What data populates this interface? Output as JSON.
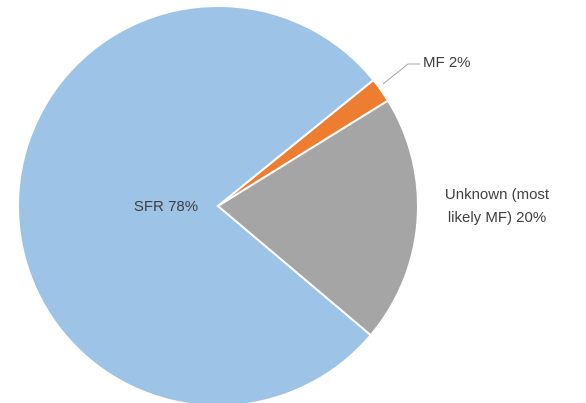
{
  "chart_data": {
    "type": "pie",
    "categories": [
      "SFR",
      "MF",
      "Unknown (most likely MF)"
    ],
    "values": [
      78,
      2,
      20
    ],
    "value_labels": [
      "78%",
      "2%",
      "20%"
    ],
    "colors": [
      "#9dc3e6",
      "#ed7d31",
      "#a5a5a5"
    ]
  }
}
